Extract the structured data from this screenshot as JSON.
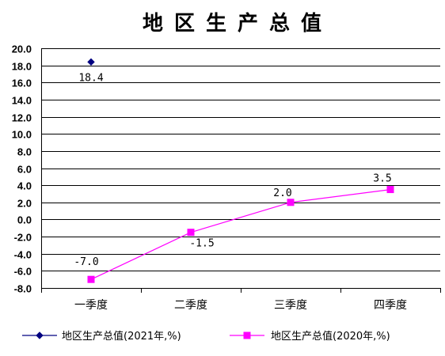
{
  "chart_data": {
    "type": "line",
    "title": "地区生产总值",
    "categories": [
      "一季度",
      "二季度",
      "三季度",
      "四季度"
    ],
    "ylim": [
      -8.0,
      20.0
    ],
    "ytick_step": 2.0,
    "y_ticks": [
      "20.0",
      "18.0",
      "16.0",
      "14.0",
      "12.0",
      "10.0",
      "8.0",
      "6.0",
      "4.0",
      "2.0",
      "0.0",
      "-2.0",
      "-4.0",
      "-6.0",
      "-8.0"
    ],
    "grid": "horizontal",
    "legend_position": "bottom",
    "series": [
      {
        "name": "地区生产总值(2021年,%)",
        "values": [
          18.4,
          null,
          null,
          null
        ],
        "labels": [
          "18.4",
          "",
          "",
          ""
        ],
        "color": "#000080",
        "marker": "diamond"
      },
      {
        "name": "地区生产总值(2020年,%)",
        "values": [
          -7.0,
          -1.5,
          2.0,
          3.5
        ],
        "labels": [
          "-7.0",
          "-1.5",
          "2.0",
          "3.5"
        ],
        "color": "#ff00ff",
        "marker": "square"
      }
    ]
  }
}
